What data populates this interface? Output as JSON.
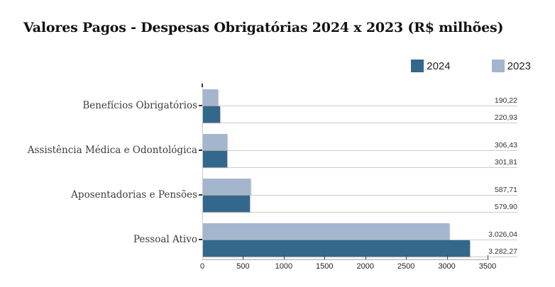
{
  "title": "Valores Pagos - Despesas Obrigatórias 2024 x 2023 (R$ milhões)",
  "legend": {
    "items": [
      {
        "label": "2024",
        "color": "#33688c"
      },
      {
        "label": "2023",
        "color": "#a4b6cd"
      }
    ]
  },
  "chart_data": {
    "type": "bar",
    "orientation": "horizontal",
    "title": "Valores Pagos - Despesas Obrigatórias 2024 x 2023 (R$ milhões)",
    "categories": [
      "Benefícios Obrigatórios",
      "Assistência Médica e Odontológica",
      "Aposentadorias e Pensões",
      "Pessoal Ativo"
    ],
    "series": [
      {
        "name": "2024",
        "color": "#33688c",
        "values": [
          220.93,
          301.81,
          579.9,
          3282.27
        ],
        "value_labels": [
          "220,93",
          "301,81",
          "579,90",
          "3.282,27"
        ]
      },
      {
        "name": "2023",
        "color": "#a4b6cd",
        "values": [
          190.22,
          306.43,
          587.71,
          3026.04
        ],
        "value_labels": [
          "190,22",
          "306,43",
          "587,71",
          "3.026,04"
        ]
      }
    ],
    "bar_display_order_top_to_bottom": [
      "2023",
      "2024"
    ],
    "xlim": [
      0,
      3500
    ],
    "x_ticks": [
      0,
      500,
      1000,
      1500,
      2000,
      2500,
      3000,
      3500
    ],
    "grid": true,
    "legend_position": "top-right",
    "value_labels_position": "right-margin",
    "colors": {
      "gridline": "#cccccc",
      "axis_line": "#a8a8a8",
      "tick": "#333333",
      "value_label_text": "#333333",
      "category_label_text": "#3c3c3c",
      "title_text": "#111111"
    }
  }
}
